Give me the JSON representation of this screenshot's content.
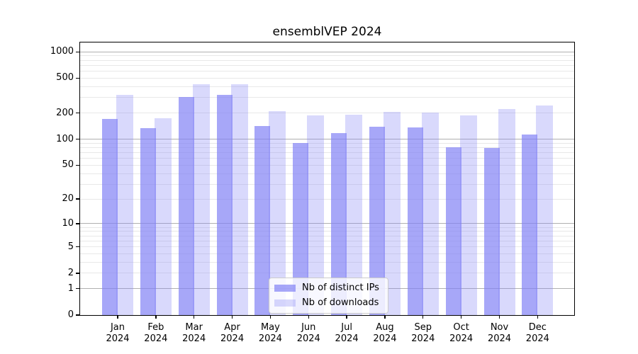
{
  "figure": {
    "title": "ensemblVEP 2024"
  },
  "chart_data": {
    "type": "bar",
    "title": "ensemblVEP 2024",
    "x_tick_months": [
      "Jan",
      "Feb",
      "Mar",
      "Apr",
      "May",
      "Jun",
      "Jul",
      "Aug",
      "Sep",
      "Oct",
      "Nov",
      "Dec"
    ],
    "x_tick_year": "2024",
    "categories": [
      "Jan 2024",
      "Feb 2024",
      "Mar 2024",
      "Apr 2024",
      "May 2024",
      "Jun 2024",
      "Jul 2024",
      "Aug 2024",
      "Sep 2024",
      "Oct 2024",
      "Nov 2024",
      "Dec 2024"
    ],
    "series": [
      {
        "name": "Nb of distinct IPs",
        "color": "rgba(130,130,245,0.7)",
        "values": [
          172,
          135,
          303,
          322,
          141,
          91,
          118,
          139,
          137,
          81,
          79,
          113
        ]
      },
      {
        "name": "Nb of downloads",
        "color": "rgba(130,130,245,0.3)",
        "values": [
          325,
          174,
          428,
          423,
          209,
          188,
          192,
          206,
          201,
          189,
          221,
          245
        ]
      }
    ],
    "y_scale": "log10(1+x)",
    "y_axis_ticks": [
      0,
      1,
      2,
      5,
      10,
      20,
      50,
      100,
      200,
      500,
      1000
    ],
    "major_gridlines": [
      1,
      10,
      100,
      1000
    ],
    "minor_gridlines": [
      2,
      3,
      4,
      5,
      6,
      7,
      8,
      9,
      20,
      30,
      40,
      50,
      60,
      70,
      80,
      90,
      200,
      300,
      400,
      500,
      600,
      700,
      800,
      900
    ],
    "ylim": [
      0,
      1270
    ],
    "grid": true,
    "legend": {
      "position": "lower center",
      "entries": [
        "Nb of distinct IPs",
        "Nb of downloads"
      ]
    },
    "colors": {
      "bar_base": "#8282f5",
      "major_grid": "#b0b0b0",
      "minor_grid": "#e8e8e8",
      "spine": "#000000",
      "legend_border": "#cccccc"
    }
  }
}
